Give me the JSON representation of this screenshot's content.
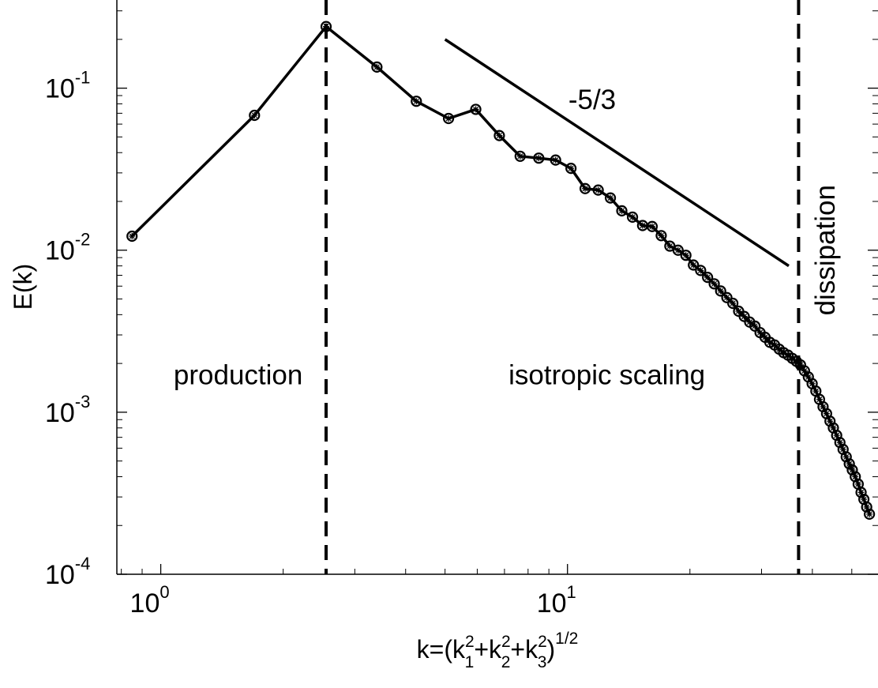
{
  "chart_data": {
    "type": "line",
    "title": "",
    "xscale": "log",
    "yscale": "log",
    "xlim": [
      0.78,
      58
    ],
    "ylim": [
      0.0001,
      0.35
    ],
    "grid": false,
    "xlabel": {
      "base": "k=(k",
      "sub1": "1",
      "sub2": "2",
      "sub3": "3",
      "sup": "2",
      "plus": "+k",
      "close": ")",
      "exponent": "1/2"
    },
    "ylabel": "E(k)",
    "x_ticks": [
      {
        "value": 1,
        "base": "10",
        "exp": "0"
      },
      {
        "value": 10,
        "base": "10",
        "exp": "1"
      }
    ],
    "y_ticks": [
      {
        "value": 0.0001,
        "base": "10",
        "exp": "-4"
      },
      {
        "value": 0.001,
        "base": "10",
        "exp": "-3"
      },
      {
        "value": 0.01,
        "base": "10",
        "exp": "-2"
      },
      {
        "value": 0.1,
        "base": "10",
        "exp": "-1"
      }
    ],
    "vlines": [
      2.55,
      37
    ],
    "slope_line": {
      "x": [
        5.0,
        35.0
      ],
      "y": [
        0.2,
        0.008
      ],
      "label": "-5/3",
      "label_at": [
        11.5,
        0.085
      ]
    },
    "regions": [
      {
        "text": "production",
        "x": 1.55,
        "y": 0.0017,
        "rotate": false
      },
      {
        "text": "isotropic scaling",
        "x": 12.5,
        "y": 0.0017,
        "rotate": false
      },
      {
        "text": "dissipation",
        "x": 43,
        "y": 0.01,
        "rotate": true
      }
    ],
    "series": [
      {
        "marker": "circle-star",
        "x": [
          0.85,
          1.7,
          2.55,
          3.4,
          4.25,
          5.1,
          5.95,
          6.8,
          7.65,
          8.5,
          9.35,
          10.2,
          11.05,
          11.9,
          12.75,
          13.6,
          14.45,
          15.3,
          16.15,
          17.0,
          17.85,
          18.7,
          19.55,
          20.4,
          21.25,
          22.1,
          22.95,
          23.8,
          24.65,
          25.5,
          26.35,
          27.2,
          28.05,
          28.9,
          29.75,
          30.6,
          31.45,
          32.3,
          33.15,
          34.0,
          34.85,
          35.7,
          36.55,
          37.4,
          38.25,
          39.1,
          39.95,
          40.8,
          41.65,
          42.5,
          43.35,
          44.2,
          45.05,
          45.9,
          46.75,
          47.6,
          48.45,
          49.3,
          50.15,
          51.0,
          51.85,
          52.7,
          53.55,
          54.4,
          55.25
        ],
        "y": [
          0.0122,
          0.068,
          0.24,
          0.135,
          0.083,
          0.065,
          0.074,
          0.051,
          0.038,
          0.037,
          0.036,
          0.032,
          0.024,
          0.0235,
          0.021,
          0.0175,
          0.016,
          0.0142,
          0.014,
          0.0123,
          0.0106,
          0.01,
          0.0093,
          0.0081,
          0.0075,
          0.0068,
          0.0062,
          0.0056,
          0.0051,
          0.0047,
          0.0042,
          0.0039,
          0.0036,
          0.0034,
          0.0031,
          0.0029,
          0.0027,
          0.0026,
          0.00245,
          0.00233,
          0.00225,
          0.00215,
          0.00206,
          0.00196,
          0.0018,
          0.00165,
          0.0015,
          0.00135,
          0.0012,
          0.00108,
          0.00098,
          0.00088,
          0.0008,
          0.00072,
          0.00065,
          0.00059,
          0.00053,
          0.00048,
          0.00044,
          0.0004,
          0.00036,
          0.00032,
          0.00029,
          0.00026,
          0.000235
        ]
      }
    ]
  }
}
